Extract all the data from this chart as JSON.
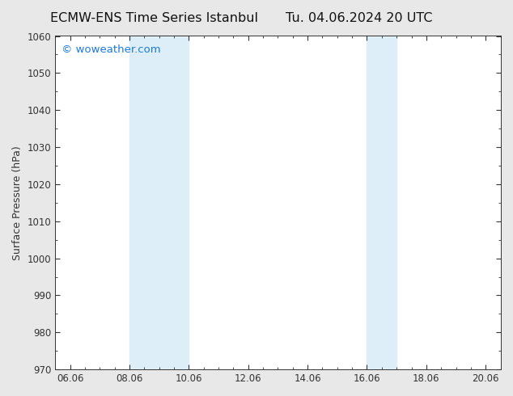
{
  "title_left": "ECMW-ENS Time Series Istanbul",
  "title_right": "Tu. 04.06.2024 20 UTC",
  "ylabel": "Surface Pressure (hPa)",
  "ylim": [
    970,
    1060
  ],
  "yticks": [
    970,
    980,
    990,
    1000,
    1010,
    1020,
    1030,
    1040,
    1050,
    1060
  ],
  "xtick_labels": [
    "06.06",
    "08.06",
    "10.06",
    "12.06",
    "14.06",
    "16.06",
    "18.06",
    "20.06"
  ],
  "xtick_positions": [
    0,
    2,
    4,
    6,
    8,
    10,
    12,
    14
  ],
  "xlim": [
    -0.5,
    14.5
  ],
  "shade_bands": [
    {
      "xmin": 2.0,
      "xmax": 4.0
    },
    {
      "xmin": 10.0,
      "xmax": 11.0
    }
  ],
  "shade_color": "#ddeef8",
  "watermark_text": "© woweather.com",
  "watermark_color": "#1a7adf",
  "figure_bg_color": "#e8e8e8",
  "plot_bg_color": "#ffffff",
  "tick_color": "#333333",
  "spine_color": "#333333",
  "title_fontsize": 11.5,
  "tick_fontsize": 8.5,
  "ylabel_fontsize": 9,
  "watermark_fontsize": 9.5
}
